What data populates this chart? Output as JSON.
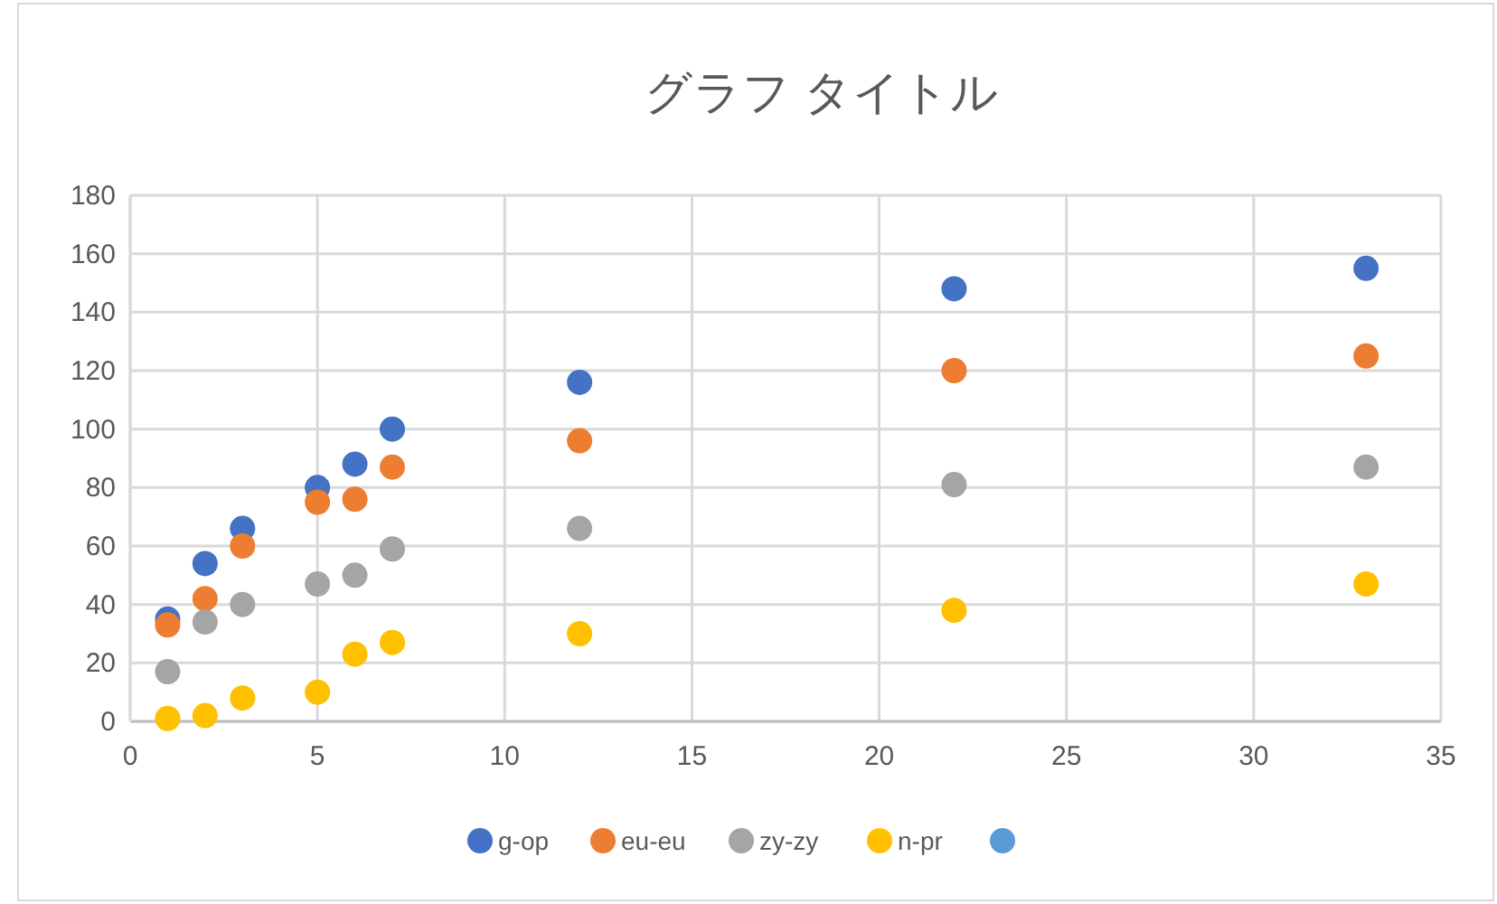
{
  "chart_data": {
    "type": "scatter",
    "title": "グラフ タイトル",
    "x": [
      1,
      2,
      3,
      5,
      6,
      7,
      12,
      22,
      33
    ],
    "series": [
      {
        "name": "g-op",
        "color": "#4472c4",
        "values": [
          35,
          54,
          66,
          80,
          88,
          100,
          116,
          148,
          155
        ]
      },
      {
        "name": "eu-eu",
        "color": "#ed7d31",
        "values": [
          33,
          42,
          60,
          75,
          76,
          87,
          96,
          120,
          125
        ]
      },
      {
        "name": "zy-zy",
        "color": "#a5a5a5",
        "values": [
          17,
          34,
          40,
          47,
          50,
          59,
          66,
          81,
          87
        ]
      },
      {
        "name": "n-pr",
        "color": "#ffc000",
        "values": [
          1,
          2,
          8,
          10,
          23,
          27,
          30,
          38,
          47
        ]
      },
      {
        "color": "#5b9bd5",
        "values": [
          null,
          null,
          null,
          null,
          null,
          null,
          null,
          null,
          null
        ]
      }
    ],
    "xlim": [
      0,
      35
    ],
    "xticks": [
      0,
      5,
      10,
      15,
      20,
      25,
      30,
      35
    ],
    "ylim": [
      0,
      180
    ],
    "yticks": [
      0,
      20,
      40,
      60,
      80,
      100,
      120,
      140,
      160,
      180
    ],
    "grid": true,
    "legend": "bottom",
    "marker": "circle"
  }
}
